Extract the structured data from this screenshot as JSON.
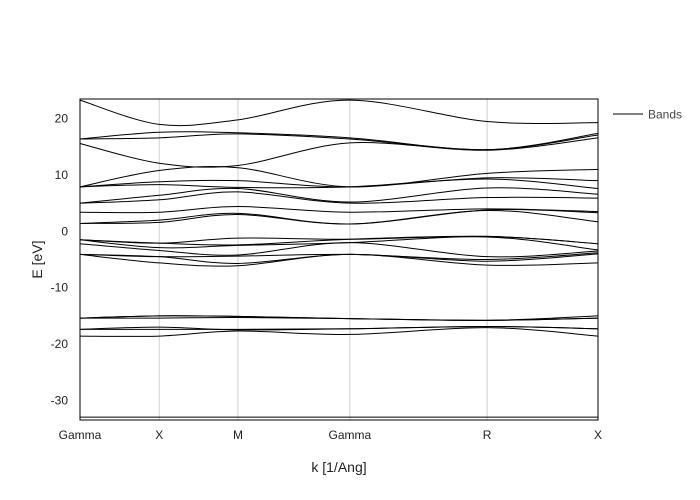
{
  "chart_data": {
    "type": "line",
    "xlabel": "k [1/Ang]",
    "ylabel": "E [eV]",
    "ylim": [
      -33.5,
      23.5
    ],
    "y_ticks": [
      20,
      10,
      0,
      -10,
      -20,
      -30
    ],
    "high_symmetry_points": [
      {
        "label": "Gamma",
        "k": 0.0
      },
      {
        "label": "X",
        "k": 0.153
      },
      {
        "label": "M",
        "k": 0.305
      },
      {
        "label": "Gamma",
        "k": 0.521
      },
      {
        "label": "R",
        "k": 0.786
      },
      {
        "label": "X",
        "k": 1.0
      }
    ],
    "xlim": [
      0.0,
      1.0
    ],
    "grid": "vertical lines at high-symmetry points",
    "legend": {
      "entries": [
        "Bands"
      ],
      "placement": "right"
    },
    "line_color": "#000000",
    "series": [
      {
        "values": [
          -33.0,
          -33.0,
          -33.0,
          -33.0,
          -33.0,
          -33.0
        ]
      },
      {
        "values": [
          -18.6,
          -18.6,
          -17.7,
          -18.3,
          -17.1,
          -18.6
        ]
      },
      {
        "values": [
          -17.4,
          -17.0,
          -17.5,
          -17.3,
          -16.9,
          -17.3
        ]
      },
      {
        "values": [
          -17.4,
          -17.4,
          -17.4,
          -17.3,
          -16.9,
          -17.3
        ]
      },
      {
        "values": [
          -15.4,
          -15.4,
          -15.3,
          -15.5,
          -15.8,
          -15.0
        ]
      },
      {
        "values": [
          -15.4,
          -15.0,
          -15.1,
          -15.5,
          -15.8,
          -15.4
        ]
      },
      {
        "values": [
          -15.4,
          -15.0,
          -15.1,
          -15.5,
          -15.8,
          -15.4
        ]
      },
      {
        "values": [
          -4.1,
          -5.6,
          -6.1,
          -4.1,
          -6.0,
          -5.6
        ]
      },
      {
        "values": [
          -4.1,
          -4.5,
          -5.7,
          -4.1,
          -5.3,
          -4.0
        ]
      },
      {
        "values": [
          -4.1,
          -4.5,
          -4.4,
          -4.1,
          -5.0,
          -3.8
        ]
      },
      {
        "values": [
          -2.2,
          -3.4,
          -4.2,
          -2.0,
          -4.5,
          -3.5
        ]
      },
      {
        "values": [
          -1.5,
          -2.9,
          -2.5,
          -2.0,
          -1.0,
          -3.3
        ]
      },
      {
        "values": [
          -1.5,
          -2.1,
          -2.4,
          -1.4,
          -0.9,
          -2.2
        ]
      },
      {
        "values": [
          -1.5,
          -2.1,
          -1.2,
          -1.4,
          -0.9,
          -2.2
        ]
      },
      {
        "values": [
          1.4,
          1.6,
          3.0,
          1.3,
          3.7,
          1.7
        ]
      },
      {
        "values": [
          1.4,
          2.0,
          3.2,
          1.3,
          3.8,
          3.3
        ]
      },
      {
        "values": [
          3.4,
          3.4,
          4.4,
          3.4,
          4.0,
          3.5
        ]
      },
      {
        "values": [
          5.0,
          5.6,
          7.0,
          5.0,
          6.0,
          5.9
        ]
      },
      {
        "values": [
          5.0,
          6.4,
          7.6,
          5.2,
          7.7,
          6.6
        ]
      },
      {
        "values": [
          7.9,
          8.3,
          7.8,
          7.9,
          9.3,
          7.6
        ]
      },
      {
        "values": [
          7.9,
          8.8,
          9.0,
          7.9,
          9.5,
          9.0
        ]
      },
      {
        "values": [
          7.9,
          10.8,
          11.3,
          7.9,
          10.3,
          11.0
        ]
      },
      {
        "values": [
          15.6,
          12.1,
          11.7,
          15.7,
          14.4,
          16.6
        ]
      },
      {
        "values": [
          16.4,
          16.6,
          17.3,
          16.4,
          14.5,
          17.1
        ]
      },
      {
        "values": [
          16.4,
          17.6,
          17.5,
          16.6,
          14.5,
          17.4
        ]
      },
      {
        "values": [
          23.3,
          19.0,
          19.8,
          23.3,
          19.5,
          19.3
        ]
      }
    ]
  }
}
